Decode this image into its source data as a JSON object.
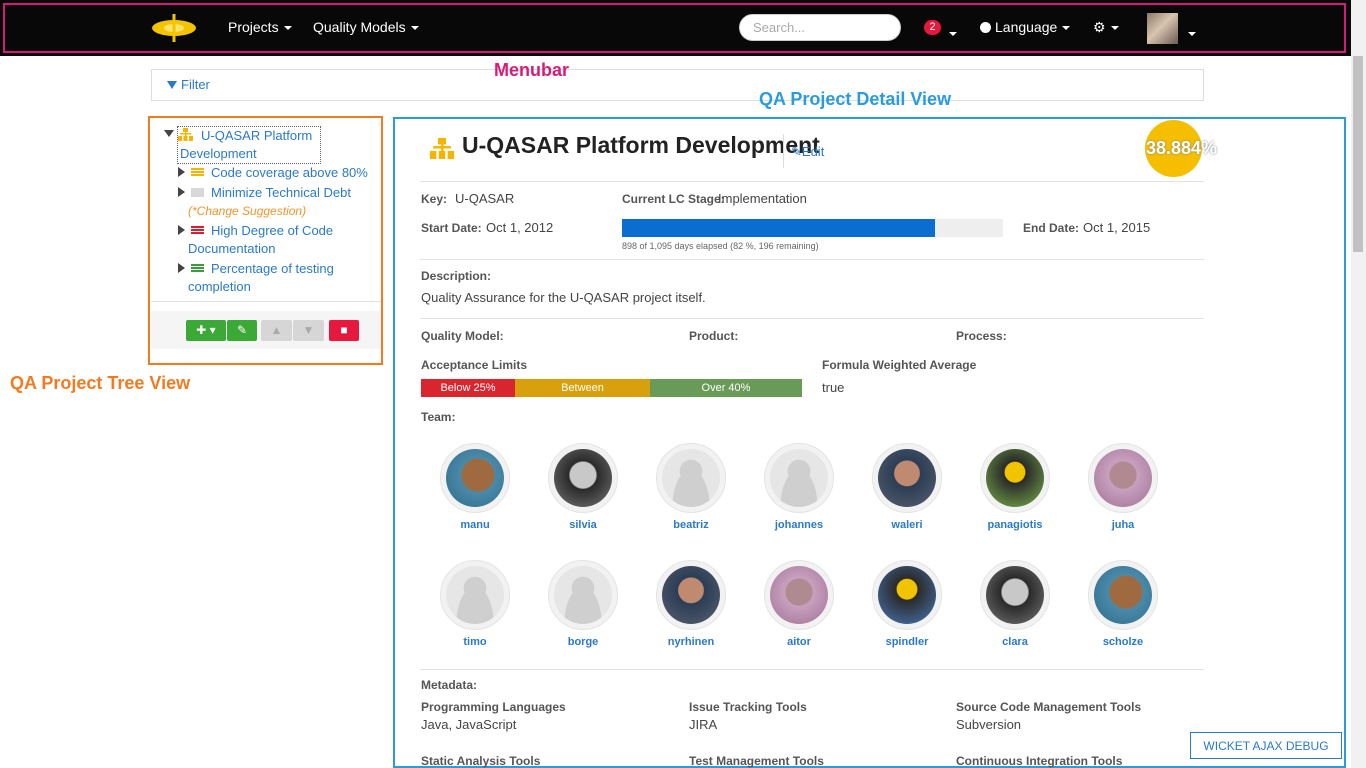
{
  "annotations": {
    "menubar": "Menubar",
    "tree_view": "QA Project Tree View",
    "detail_view": "QA Project Detail View"
  },
  "colors": {
    "menubar_outline": "#d81b78",
    "tree_outline": "#f47a20",
    "detail_outline": "#2a9bde",
    "link": "#2a7ac8"
  },
  "nav": {
    "projects": "Projects",
    "quality_models": "Quality Models",
    "search_placeholder": "Search...",
    "notifications_count": "2",
    "language": "Language"
  },
  "filter": {
    "label": "Filter"
  },
  "tree": {
    "root_line1": "U-QASAR Platform",
    "root_line2": "Development",
    "items": [
      {
        "label": "Code coverage above 80%",
        "icon": "yellow-flag-icon"
      },
      {
        "label": "Minimize Technical Debt",
        "icon": "grey-flag-icon"
      },
      {
        "label": "(*Change Suggestion)"
      },
      {
        "label": "High Degree of Code",
        "icon": "red-flag-icon"
      },
      {
        "label": "Documentation"
      },
      {
        "label": "Percentage of testing",
        "icon": "green-flag-icon"
      },
      {
        "label": "completion"
      }
    ]
  },
  "project": {
    "title": "U-QASAR Platform Development",
    "edit": "Edit",
    "kpi": "38.884%",
    "key_label": "Key:",
    "key": "U-QASAR",
    "lc_label": "Current LC Stage:",
    "lc": "Implementation",
    "start_label": "Start Date:",
    "start": "Oct 1, 2012",
    "end_label": "End Date:",
    "end": "Oct 1, 2015",
    "progress_fraction": 0.82,
    "progress_text": "898 of 1,095 days elapsed (82 %, 196 remaining)",
    "description_label": "Description:",
    "description": "Quality Assurance for the U-QASAR project itself.",
    "quality_model_label": "Quality Model:",
    "product_label": "Product:",
    "process_label": "Process:",
    "acceptance_label": "Acceptance Limits",
    "limits": [
      "Below 25%",
      "Between",
      "Over 40%"
    ],
    "formula_label": "Formula Weighted Average",
    "formula": "true",
    "team_label": "Team:",
    "metadata_label": "Metadata:",
    "meta": [
      {
        "label": "Programming Languages",
        "value": "Java, JavaScript"
      },
      {
        "label": "Issue Tracking Tools",
        "value": "JIRA"
      },
      {
        "label": "Source Code Management Tools",
        "value": "Subversion"
      },
      {
        "label": "Static Analysis Tools",
        "value": ""
      },
      {
        "label": "Test Management Tools",
        "value": ""
      },
      {
        "label": "Continuous Integration Tools",
        "value": ""
      }
    ]
  },
  "team": [
    "manu",
    "silvia",
    "beatriz",
    "johannes",
    "waleri",
    "panagiotis",
    "juha",
    "timo",
    "borge",
    "nyrhinen",
    "aitor",
    "spindler",
    "clara",
    "scholze"
  ],
  "debug": "WICKET AJAX DEBUG"
}
